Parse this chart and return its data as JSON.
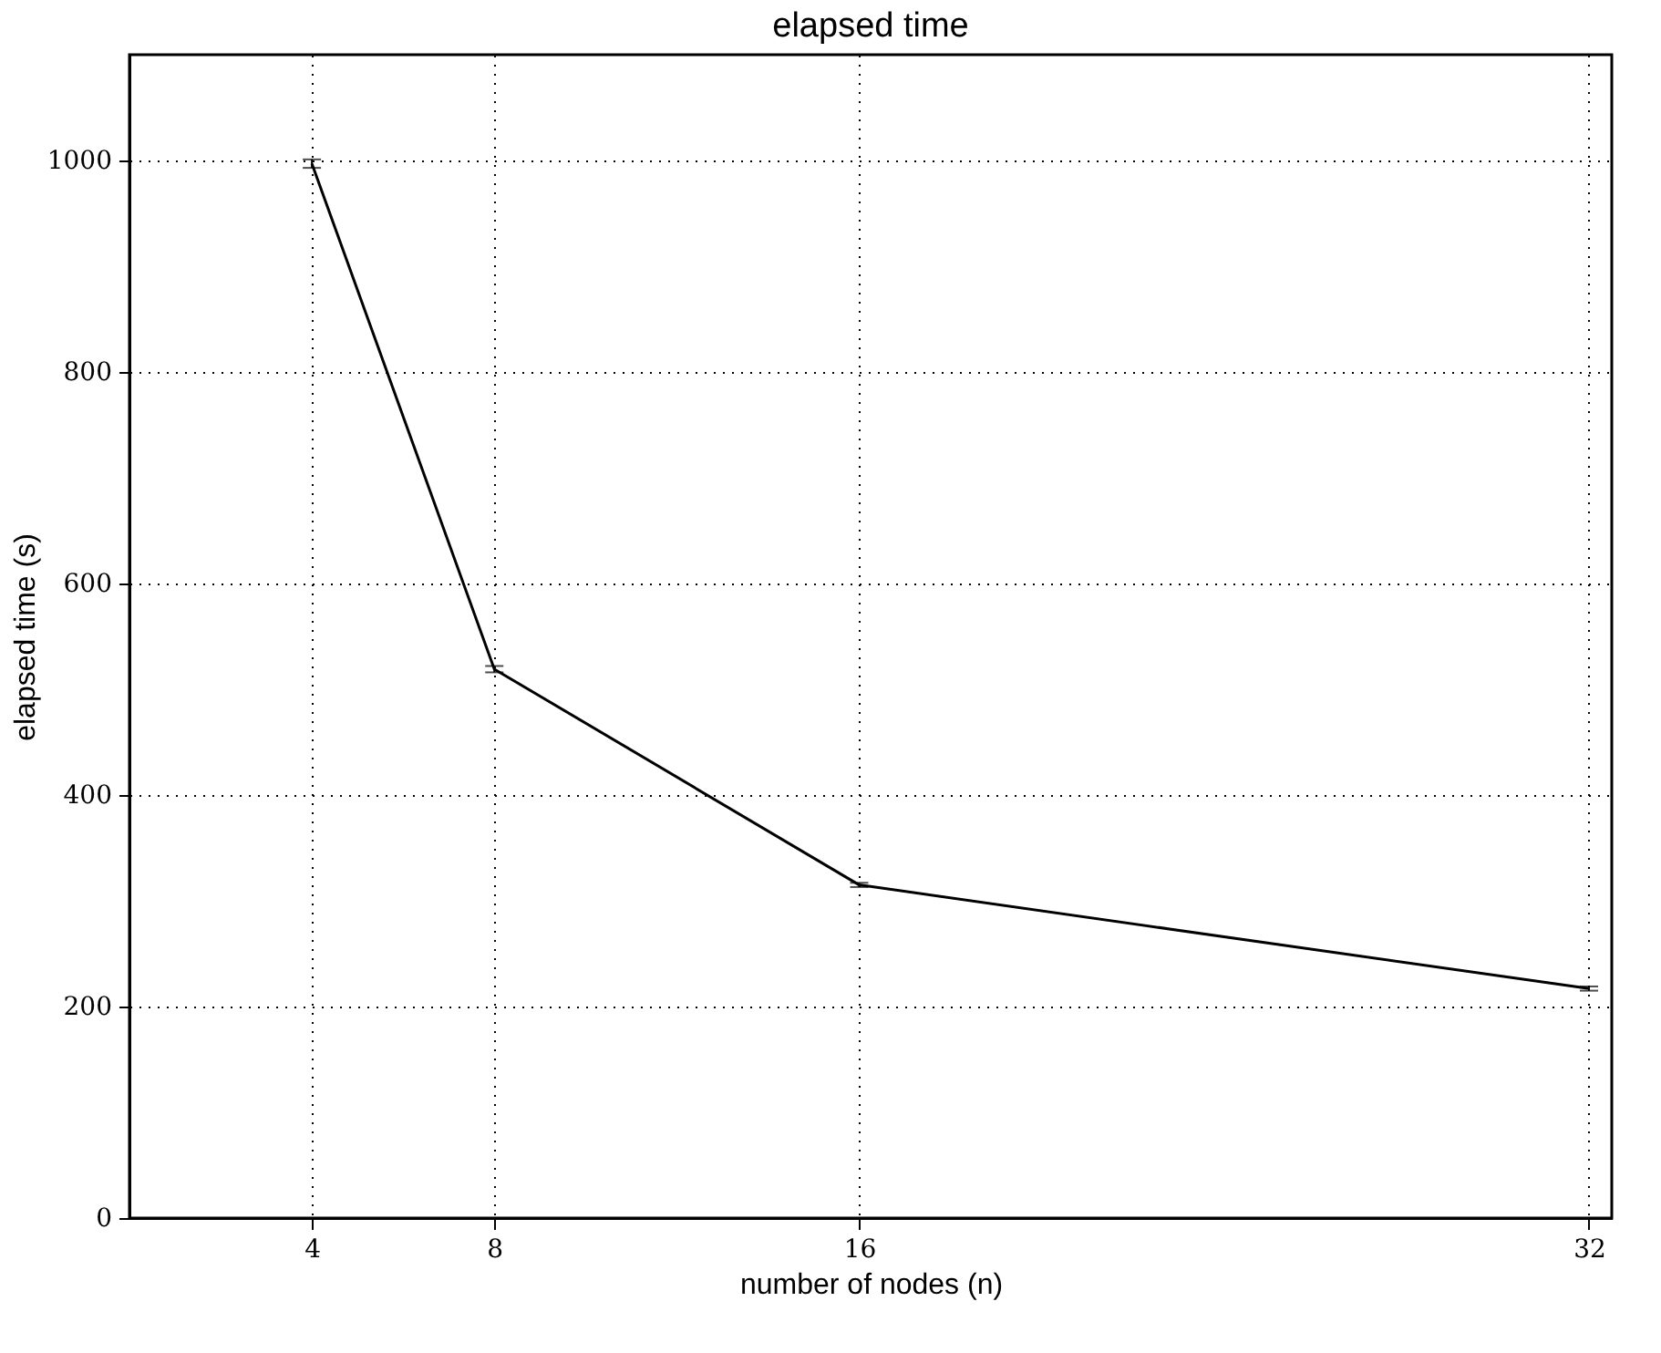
{
  "chart_data": {
    "type": "line",
    "title": "elapsed time",
    "xlabel": "number of nodes (n)",
    "ylabel": "elapsed time (s)",
    "x": [
      4,
      8,
      16,
      32
    ],
    "series": [
      {
        "color": "#000000",
        "values": [
          997,
          519,
          315,
          217
        ],
        "errors": [
          4,
          3,
          2,
          2
        ]
      }
    ],
    "xlim": [
      0,
      32.5
    ],
    "xticks": [
      4,
      8,
      16,
      32
    ],
    "ylim": [
      0,
      1100
    ],
    "yticks": [
      0,
      200,
      400,
      600,
      800,
      1000
    ],
    "grid": true,
    "marker": "none",
    "line_style": "solid"
  }
}
